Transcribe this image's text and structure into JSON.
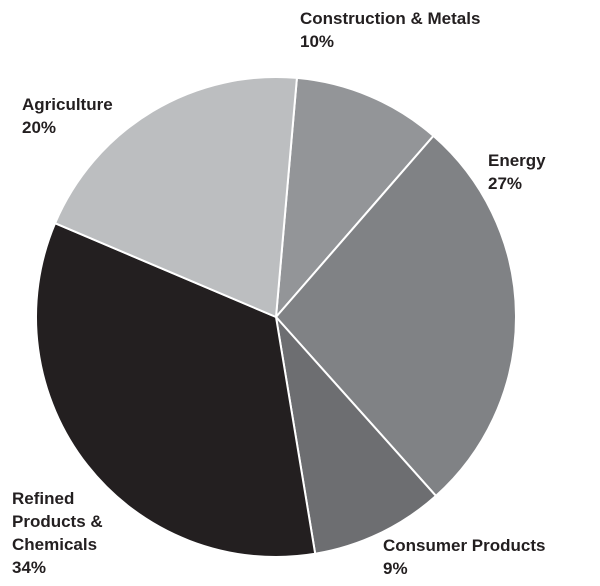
{
  "chart_data": {
    "type": "pie",
    "slices": [
      {
        "label": "Construction & Metals",
        "value": 10,
        "percent_label": "10%",
        "color": "#939598"
      },
      {
        "label": "Energy",
        "value": 27,
        "percent_label": "27%",
        "color": "#808285"
      },
      {
        "label": "Consumer Products",
        "value": 9,
        "percent_label": "9%",
        "color": "#6d6e71"
      },
      {
        "label": "Refined Products & Chemicals",
        "value": 34,
        "percent_label": "34%",
        "color": "#231f20"
      },
      {
        "label": "Agriculture",
        "value": 20,
        "percent_label": "20%",
        "color": "#bcbec0"
      }
    ],
    "legend": "none",
    "labels_position": "outside"
  }
}
